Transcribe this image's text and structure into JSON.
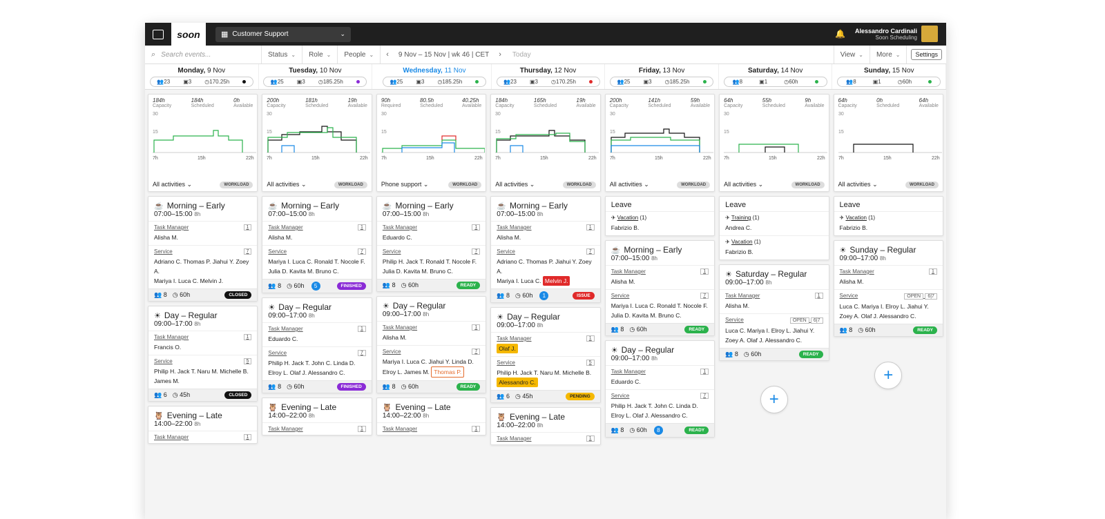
{
  "topbar": {
    "brand": "soon",
    "team": "Customer Support",
    "user_name": "Alessandro Cardinali",
    "user_org": "Soon Scheduling"
  },
  "toolbar": {
    "search_placeholder": "Search events...",
    "status": "Status",
    "role": "Role",
    "people": "People",
    "date_range": "9 Nov – 15 Nov | wk 46 | CET",
    "today": "Today",
    "view": "View",
    "more": "More",
    "settings": "Settings"
  },
  "days": [
    {
      "name": "Monday,",
      "date": "9 Nov",
      "people": "23",
      "shifts": "3",
      "hours": "170.25h",
      "dot": "#111111"
    },
    {
      "name": "Tuesday,",
      "date": "10 Nov",
      "people": "25",
      "shifts": "3",
      "hours": "185.25h",
      "dot": "#8a2bd6"
    },
    {
      "name": "Wednesday,",
      "date": "11 Nov",
      "people": "25",
      "shifts": "3",
      "hours": "185.25h",
      "dot": "#2bb24c"
    },
    {
      "name": "Thursday,",
      "date": "12 Nov",
      "people": "23",
      "shifts": "3",
      "hours": "170.25h",
      "dot": "#e02a2a"
    },
    {
      "name": "Friday,",
      "date": "13 Nov",
      "people": "25",
      "shifts": "3",
      "hours": "185.25h",
      "dot": "#2bb24c"
    },
    {
      "name": "Saturday,",
      "date": "14 Nov",
      "people": "8",
      "shifts": "1",
      "hours": "60h",
      "dot": "#2bb24c"
    },
    {
      "name": "Sunday,",
      "date": "15 Nov",
      "people": "8",
      "shifts": "1",
      "hours": "60h",
      "dot": "#2bb24c"
    }
  ],
  "charts": [
    {
      "s1v": "184h",
      "s1l": "Capacity",
      "s2v": "184h",
      "s2l": "Scheduled",
      "s3v": "0h",
      "s3l": "Available",
      "filter": "All activities"
    },
    {
      "s1v": "200h",
      "s1l": "Capacity",
      "s2v": "181h",
      "s2l": "Scheduled",
      "s3v": "19h",
      "s3l": "Available",
      "filter": "All activities"
    },
    {
      "s1v": "90h",
      "s1l": "Required",
      "s2v": "80.5h",
      "s2l": "Scheduled",
      "s3v": "40.25h",
      "s3l": "Available",
      "filter": "Phone support"
    },
    {
      "s1v": "184h",
      "s1l": "Capacity",
      "s2v": "165h",
      "s2l": "Scheduled",
      "s3v": "19h",
      "s3l": "Available",
      "filter": "All activities"
    },
    {
      "s1v": "200h",
      "s1l": "Capacity",
      "s2v": "141h",
      "s2l": "Scheduled",
      "s3v": "59h",
      "s3l": "Available",
      "filter": "All activities"
    },
    {
      "s1v": "64h",
      "s1l": "Capacity",
      "s2v": "55h",
      "s2l": "Scheduled",
      "s3v": "9h",
      "s3l": "Available",
      "filter": "All activities"
    },
    {
      "s1v": "64h",
      "s1l": "Capacity",
      "s2v": "0h",
      "s2l": "Scheduled",
      "s3v": "64h",
      "s3l": "Available",
      "filter": "All activities"
    }
  ],
  "chart_common": {
    "y30": "30",
    "y15": "15",
    "x1": "7h",
    "x2": "15h",
    "x3": "22h",
    "workload": "WORKLOAD"
  },
  "labels": {
    "task_manager": "Task Manager",
    "service": "Service",
    "leave": "Leave"
  },
  "shifts": {
    "mon_morning": {
      "title": "Morning – Early",
      "time": "07:00–15:00",
      "hours": "8h",
      "tm_count": "1",
      "tm": "Alisha M.",
      "svc_count": "7",
      "svc1": "Adriano C. Thomas P. Jiahui Y. Zoey A.",
      "svc2": "Mariya I. Luca C. Melvin J.",
      "people": "8",
      "total": "60h",
      "status": "CLOSED"
    },
    "tue_morning": {
      "title": "Morning – Early",
      "time": "07:00–15:00",
      "hours": "8h",
      "tm_count": "1",
      "tm": "Alisha M.",
      "svc_count": "7",
      "svc1": "Mariya I. Luca C. Ronald T. Nocole F.",
      "svc2": "Julia D. Kavita M. Bruno C.",
      "people": "8",
      "total": "60h",
      "badge": "5",
      "status": "FINISHED"
    },
    "wed_morning": {
      "title": "Morning – Early",
      "time": "07:00–15:00",
      "hours": "8h",
      "tm_count": "1",
      "tm": "Eduardo C.",
      "svc_count": "7",
      "svc1": "Philip H. Jack T. Ronald T. Nocole F.",
      "svc2": "Julia D. Kavita M. Bruno C.",
      "people": "8",
      "total": "60h",
      "status": "READY"
    },
    "thu_morning": {
      "title": "Morning – Early",
      "time": "07:00–15:00",
      "hours": "8h",
      "tm_count": "1",
      "tm": "Alisha M.",
      "svc_count": "7",
      "svc1": "Adriano C. Thomas P. Jiahui Y. Zoey A.",
      "svc2": "Mariya I. Luca C.",
      "svc2_tag": "Melvin J.",
      "people": "8",
      "total": "60h",
      "badge": "1",
      "status": "ISSUE"
    },
    "fri_morning": {
      "title": "Morning – Early",
      "time": "07:00–15:00",
      "hours": "8h",
      "tm_count": "1",
      "tm": "Alisha M.",
      "svc_count": "7",
      "svc1": "Mariya I. Luca C. Ronald T. Nocole F.",
      "svc2": "Julia D. Kavita M. Bruno C.",
      "people": "8",
      "total": "60h",
      "status": "READY"
    },
    "mon_day": {
      "title": "Day – Regular",
      "time": "09:00–17:00",
      "hours": "8h",
      "tm_count": "1",
      "tm": "Francis O.",
      "svc_count": "5",
      "svc1": "Philip H. Jack T. Naru M. Michelle B.",
      "svc2": "James M.",
      "people": "6",
      "total": "45h",
      "status": "CLOSED"
    },
    "tue_day": {
      "title": "Day – Regular",
      "time": "09:00–17:00",
      "hours": "8h",
      "tm_count": "1",
      "tm": "Eduardo C.",
      "svc_count": "7",
      "svc1": "Philip H. Jack T. John C. Linda D.",
      "svc2": "Elroy L. Olaf J. Alessandro C.",
      "people": "8",
      "total": "60h",
      "status": "FINISHED"
    },
    "wed_day": {
      "title": "Day – Regular",
      "time": "09:00–17:00",
      "hours": "8h",
      "tm_count": "1",
      "tm": "Alisha M.",
      "svc_count": "7",
      "svc1": "Mariya I. Luca C. Jiahui Y. Linda D.",
      "svc2": "Elroy L. James M.",
      "svc2_tag": "Thomas P.",
      "people": "8",
      "total": "60h",
      "status": "READY"
    },
    "thu_day": {
      "title": "Day – Regular",
      "time": "09:00–17:00",
      "hours": "8h",
      "tm_count": "1",
      "tm": "Olaf J.",
      "svc_count": "5",
      "svc1": "Philip H. Jack T. Naru M. Michelle B.",
      "svc2_tag": "Alessandro C.",
      "people": "6",
      "total": "45h",
      "status": "PENDING"
    },
    "fri_day": {
      "title": "Day – Regular",
      "time": "09:00–17:00",
      "hours": "8h",
      "tm_count": "1",
      "tm": "Eduardo C.",
      "svc_count": "7",
      "svc1": "Philip H. Jack T. John C. Linda D.",
      "svc2": "Elroy L. Olaf J. Alessandro C.",
      "people": "8",
      "total": "60h",
      "badge": "8",
      "status": "READY"
    },
    "sat_regular": {
      "title": "Saturday – Regular",
      "time": "09:00–17:00",
      "hours": "8h",
      "tm_count": "1",
      "tm": "Alisha M.",
      "svc_open": "OPEN",
      "svc_count": "6|7",
      "svc1": "Luca C. Mariya I. Elroy L. Jiahui Y.",
      "svc2": "Zoey A. Olaf J. Alessandro C.",
      "people": "8",
      "total": "60h",
      "status": "READY"
    },
    "sun_regular": {
      "title": "Sunday – Regular",
      "time": "09:00–17:00",
      "hours": "8h",
      "tm_count": "1",
      "tm": "Alisha M.",
      "svc_open": "OPEN",
      "svc_count": "6|7",
      "svc1": "Luca C. Mariya I. Elroy L. Jiahui Y.",
      "svc2": "Zoey A. Olaf J. Alessandro C.",
      "people": "8",
      "total": "60h",
      "status": "READY"
    },
    "evening": {
      "title": "Evening – Late",
      "time": "14:00–22:00",
      "hours": "8h",
      "tm_count": "1"
    }
  },
  "leave": {
    "fri": [
      {
        "type": "Vacation",
        "n": "(1)",
        "who": "Fabrizio B."
      }
    ],
    "sat": [
      {
        "type": "Training",
        "n": "(1)",
        "who": "Andrea C."
      },
      {
        "type": "Vacation",
        "n": "(1)",
        "who": "Fabrizio B."
      }
    ],
    "sun": [
      {
        "type": "Vacation",
        "n": "(1)",
        "who": "Fabrizio B."
      }
    ]
  },
  "colors": {
    "accent": "#1a8ae6",
    "ready": "#2bb24c",
    "finished": "#8a2bd6",
    "issue": "#e02a2a",
    "pending": "#f5b800",
    "closed": "#111111"
  },
  "icons": {
    "search": "search-icon",
    "bell": "bell-icon",
    "people": "people-icon",
    "clock": "clock-icon",
    "plus": "plus-icon"
  }
}
